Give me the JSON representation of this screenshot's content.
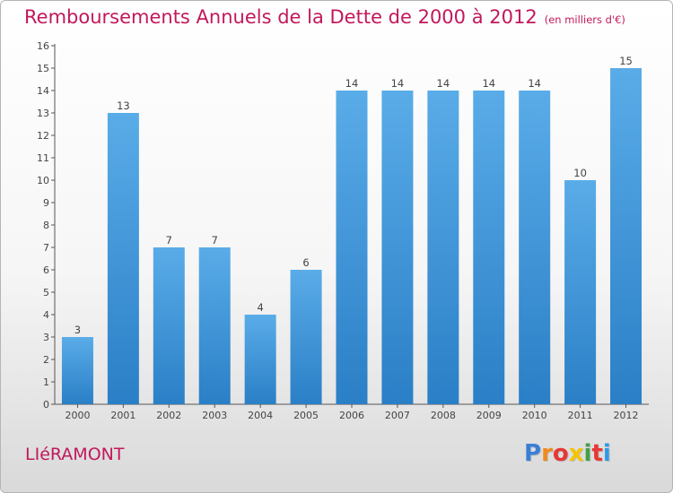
{
  "title": "Remboursements Annuels de la Dette de 2000 à 2012",
  "subtitle": "(en milliers d'€)",
  "town": "LIéRAMONT",
  "brand": {
    "letters": [
      "P",
      "r",
      "o",
      "x",
      "i",
      "t",
      "i"
    ],
    "colors": [
      "#3a7fd6",
      "#f08a1c",
      "#e53935",
      "#f5c400",
      "#43a047",
      "#e53935",
      "#2e9be6"
    ]
  },
  "colors": {
    "title": "#c2185b",
    "bar_light": "#5aace8",
    "bar_dark": "#2a7fc6"
  },
  "chart_data": {
    "type": "bar",
    "title": "Remboursements Annuels de la Dette de 2000 à 2012",
    "categories": [
      "2000",
      "2001",
      "2002",
      "2003",
      "2004",
      "2005",
      "2006",
      "2007",
      "2008",
      "2009",
      "2010",
      "2011",
      "2012"
    ],
    "values": [
      3,
      13,
      7,
      7,
      4,
      6,
      14,
      14,
      14,
      14,
      14,
      10,
      15
    ],
    "ylim": [
      0,
      16
    ],
    "yticks": [
      0,
      1,
      2,
      3,
      4,
      5,
      6,
      7,
      8,
      9,
      10,
      11,
      12,
      13,
      14,
      15,
      16
    ],
    "grid": false,
    "legend": "none"
  }
}
